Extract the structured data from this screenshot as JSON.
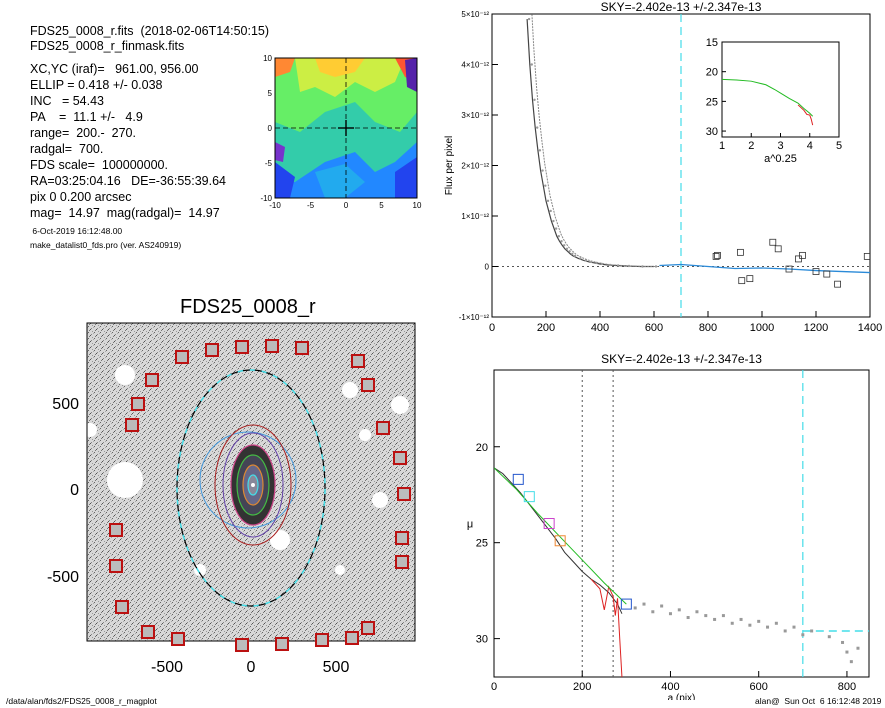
{
  "header": {
    "line1": "FDS25_0008_r.fits  (2018-02-06T14:50:15)",
    "line2": "FDS25_0008_r_finmask.fits",
    "params": [
      "XC,YC (iraf)=   961.00, 956.00",
      "ELLIP = 0.418 +/- 0.038",
      "INC   = 54.43",
      "PA    =  11.1 +/-   4.9",
      "range=  200.-  270.",
      "radgal=  700.",
      "FDS scale=  100000000.",
      "RA=03:25:04.16   DE=-36:55:39.64",
      "pix 0 0.200 arcsec",
      "mag=  14.97  mag(radgal)=  14.97"
    ],
    "date": " 6-Oct-2019 16:12:48.00",
    "program": "make_datalist0_fds.pro (ver. AS240919)"
  },
  "image_panel": {
    "title": "FDS25_0008_r",
    "x_ticks": [
      "-500",
      "0",
      "500"
    ],
    "y_ticks": [
      "500",
      "0",
      "-500"
    ]
  },
  "velocity_map": {
    "x_ticks": [
      "-10",
      "-5",
      "0",
      "5",
      "10"
    ],
    "y_ticks": [
      "10",
      "5",
      "0",
      "-5",
      "-10"
    ]
  },
  "footer": {
    "path": "/data/alan/fds2/FDS25_0008_r_magplot",
    "stamp": "alan@  Sun Oct  6 16:12:48 2019"
  },
  "colors": {
    "cyan_dash": "#44dde8",
    "blue_model": "#2a8ad8",
    "green_model": "#22bb22",
    "red_model": "#dd2222",
    "mask_red": "#bb1111"
  },
  "chart_data": [
    {
      "type": "scatter",
      "title": "SKY=-2.402e-13 +/-2.347e-13",
      "xlabel": "",
      "ylabel": "Flux per pixel",
      "xlim": [
        0,
        1400
      ],
      "ylim": [
        -1e-12,
        5e-12
      ],
      "x_ticks": [
        "0",
        "200",
        "400",
        "600",
        "800",
        "1000",
        "1200",
        "1400"
      ],
      "y_tick_values": [
        -1e-12,
        0,
        1e-12,
        2e-12,
        3e-12,
        4e-12,
        5e-12
      ],
      "y_tick_labels": [
        "-1×10⁻¹²",
        "0",
        "1×10⁻¹²",
        "2×10⁻¹²",
        "3×10⁻¹²",
        "4×10⁻¹²",
        "5×10⁻¹²"
      ],
      "vline_x": 700,
      "profile_x": [
        130,
        140,
        150,
        160,
        170,
        180,
        190,
        200,
        210,
        220,
        230,
        240,
        250,
        260,
        270,
        280,
        290,
        300,
        320,
        340,
        360,
        380,
        400,
        430,
        460,
        500,
        550,
        600
      ],
      "profile_y": [
        4.9e-12,
        4e-12,
        3.3e-12,
        2.75e-12,
        2.3e-12,
        1.9e-12,
        1.6e-12,
        1.3e-12,
        1.1e-12,
        9e-13,
        7.5e-13,
        6e-13,
        5e-13,
        4.2e-13,
        3.5e-13,
        3e-13,
        2.5e-13,
        2.1e-13,
        1.6e-13,
        1.2e-13,
        9e-14,
        7e-14,
        5e-14,
        3e-14,
        2e-14,
        1e-14,
        0.0,
        0.0
      ],
      "sky_model_x": [
        620,
        700,
        800,
        900,
        1000,
        1100,
        1200,
        1300,
        1400
      ],
      "sky_model_y": [
        2e-14,
        4e-14,
        0.0,
        -4e-14,
        -3e-14,
        -5e-14,
        -8e-14,
        -1e-13,
        -1.2e-13
      ],
      "sky_points": [
        {
          "x": 830,
          "y": 2e-13
        },
        {
          "x": 835,
          "y": 2.2e-13
        },
        {
          "x": 920,
          "y": 2.8e-13
        },
        {
          "x": 925,
          "y": -2.8e-13
        },
        {
          "x": 955,
          "y": -2.4e-13
        },
        {
          "x": 1040,
          "y": 4.8e-13
        },
        {
          "x": 1060,
          "y": 3.5e-13
        },
        {
          "x": 1100,
          "y": -5e-14
        },
        {
          "x": 1135,
          "y": 1.5e-13
        },
        {
          "x": 1150,
          "y": 2.2e-13
        },
        {
          "x": 1200,
          "y": -1e-13
        },
        {
          "x": 1240,
          "y": -1.5e-13
        },
        {
          "x": 1280,
          "y": -3.5e-13
        },
        {
          "x": 1390,
          "y": 2e-13
        }
      ]
    },
    {
      "type": "line",
      "title": "",
      "xlabel": "a^0.25",
      "ylabel": "",
      "xlim": [
        1,
        5
      ],
      "ylim": [
        31,
        15
      ],
      "x_ticks": [
        "1",
        "2",
        "3",
        "4",
        "5"
      ],
      "y_ticks": [
        "15",
        "20",
        "25",
        "30"
      ],
      "series": [
        {
          "color": "#22bb22",
          "x": [
            1.0,
            1.5,
            2.0,
            2.5,
            2.8,
            3.0,
            3.3,
            3.6,
            3.8,
            4.0,
            4.1
          ],
          "y": [
            21.3,
            21.4,
            21.6,
            22.2,
            23.0,
            23.6,
            24.5,
            25.3,
            26.2,
            27.0,
            27.5
          ]
        },
        {
          "color": "#dd2222",
          "x": [
            3.6,
            3.8,
            3.9,
            4.0,
            4.05,
            4.1
          ],
          "y": [
            25.6,
            26.5,
            27.2,
            27.3,
            28.0,
            29.0
          ]
        }
      ]
    },
    {
      "type": "line",
      "title": "SKY=-2.402e-13 +/-2.347e-13",
      "xlabel": "a (pix)",
      "ylabel": "μ",
      "xlim": [
        0,
        850
      ],
      "ylim": [
        32,
        16
      ],
      "x_ticks": [
        "0",
        "200",
        "400",
        "600",
        "800"
      ],
      "y_ticks": [
        "20",
        "25",
        "30"
      ],
      "range_lines": [
        200,
        270
      ],
      "radgal_line": 700,
      "sky_level": 29.6,
      "profile_series": [
        {
          "color": "#333333",
          "x": [
            0,
            20,
            40,
            60,
            80,
            100,
            120,
            140,
            160,
            180,
            200,
            220,
            240,
            260,
            280,
            290
          ],
          "y": [
            21.1,
            21.4,
            21.9,
            22.4,
            23.0,
            23.6,
            24.2,
            24.8,
            25.5,
            26.0,
            26.5,
            26.9,
            27.2,
            27.6,
            28.2,
            28.7
          ]
        },
        {
          "color": "#dd2222",
          "x": [
            220,
            240,
            250,
            260,
            270,
            275,
            280,
            285,
            290
          ],
          "y": [
            26.9,
            27.4,
            28.5,
            27.3,
            27.8,
            28.8,
            27.9,
            30.0,
            32.0
          ]
        },
        {
          "color": "#22bb22",
          "x": [
            0,
            50,
            100,
            150,
            200,
            250,
            300
          ],
          "y": [
            21.1,
            22.2,
            23.5,
            24.7,
            25.9,
            27.1,
            28.2
          ]
        }
      ],
      "iso_boxes": [
        {
          "x": 55,
          "y": 21.7,
          "color": "#2255cc"
        },
        {
          "x": 80,
          "y": 22.6,
          "color": "#44dde8"
        },
        {
          "x": 125,
          "y": 24.0,
          "color": "#cc44cc"
        },
        {
          "x": 150,
          "y": 24.9,
          "color": "#ee8833"
        },
        {
          "x": 300,
          "y": 28.2,
          "color": "#2255cc"
        }
      ],
      "outer_points": [
        {
          "x": 320,
          "y": 28.4
        },
        {
          "x": 340,
          "y": 28.2
        },
        {
          "x": 360,
          "y": 28.6
        },
        {
          "x": 380,
          "y": 28.3
        },
        {
          "x": 400,
          "y": 28.7
        },
        {
          "x": 420,
          "y": 28.5
        },
        {
          "x": 440,
          "y": 28.9
        },
        {
          "x": 460,
          "y": 28.6
        },
        {
          "x": 480,
          "y": 28.8
        },
        {
          "x": 500,
          "y": 29.0
        },
        {
          "x": 520,
          "y": 28.8
        },
        {
          "x": 540,
          "y": 29.2
        },
        {
          "x": 560,
          "y": 29.0
        },
        {
          "x": 580,
          "y": 29.3
        },
        {
          "x": 600,
          "y": 29.1
        },
        {
          "x": 620,
          "y": 29.4
        },
        {
          "x": 640,
          "y": 29.2
        },
        {
          "x": 660,
          "y": 29.6
        },
        {
          "x": 680,
          "y": 29.4
        },
        {
          "x": 700,
          "y": 29.8
        },
        {
          "x": 720,
          "y": 29.6
        },
        {
          "x": 760,
          "y": 29.9
        },
        {
          "x": 790,
          "y": 30.2
        },
        {
          "x": 800,
          "y": 30.7
        },
        {
          "x": 810,
          "y": 31.2
        },
        {
          "x": 825,
          "y": 30.5
        }
      ]
    }
  ]
}
